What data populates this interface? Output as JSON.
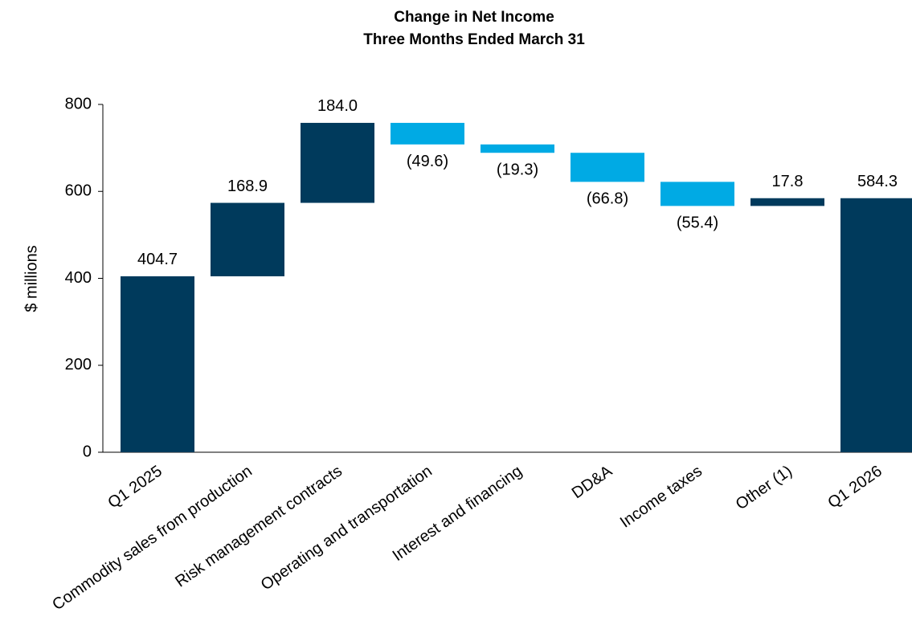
{
  "chart_data": {
    "type": "waterfall",
    "title": "Change in Net Income",
    "subtitle": "Three Months Ended March 31",
    "y_label": "$ millions",
    "categories": [
      "Q1 2025",
      "Commodity sales from production",
      "Risk management contracts",
      "Operating and transportation",
      "Interest and financing",
      "DD&A",
      "Income taxes",
      "Other (1)",
      "Q1 2026"
    ],
    "values": [
      404.7,
      168.9,
      184.0,
      -49.6,
      -19.3,
      -66.8,
      -55.4,
      17.8,
      584.3
    ],
    "value_labels": [
      "404.7",
      "168.9",
      "184.0",
      "(49.6)",
      "(19.3)",
      "(66.8)",
      "(55.4)",
      "17.8",
      "584.3"
    ],
    "total_color": "#003a5c",
    "increase_color": "#003a5c",
    "decrease_color": "#00aae4",
    "ylim": [
      0,
      800
    ],
    "yticks": [
      0,
      200,
      400,
      600,
      800
    ],
    "grid": false
  }
}
